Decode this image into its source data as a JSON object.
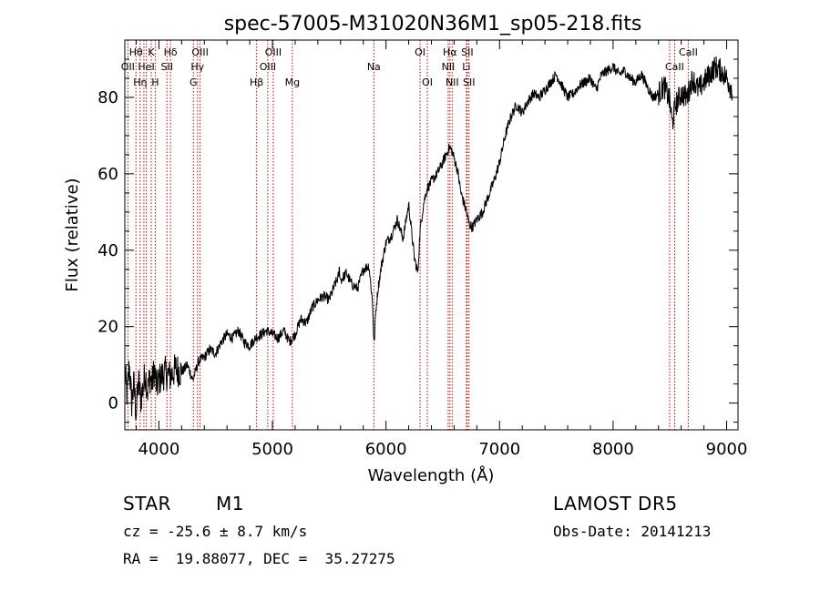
{
  "chart_data": {
    "type": "line",
    "title": "spec-57005-M31020N36M1_sp05-218.fits",
    "xlabel": "Wavelength (Å)",
    "ylabel": "Flux (relative)",
    "xlim": [
      3700,
      9100
    ],
    "ylim": [
      -7,
      95
    ],
    "xticks": [
      4000,
      5000,
      6000,
      7000,
      8000,
      9000
    ],
    "yticks": [
      0,
      20,
      40,
      60,
      80
    ],
    "grid": false,
    "legend": "none",
    "line_color": "#000000",
    "marker_color": "#cc0000",
    "series": [
      {
        "x": [
          3700,
          3720,
          3740,
          3760,
          3780,
          3800,
          3820,
          3840,
          3860,
          3880,
          3900,
          3920,
          3940,
          3960,
          3980,
          4000,
          4050,
          4100,
          4150,
          4200,
          4250,
          4300,
          4350,
          4400,
          4450,
          4500,
          4550,
          4600,
          4650,
          4700,
          4750,
          4800,
          4850,
          4900,
          4950,
          5000,
          5050,
          5100,
          5150,
          5200,
          5250,
          5300,
          5350,
          5400,
          5450,
          5500,
          5550,
          5580,
          5590,
          5600,
          5650,
          5700,
          5750,
          5800,
          5850,
          5880,
          5895,
          5910,
          5930,
          5960,
          6000,
          6050,
          6100,
          6150,
          6200,
          6250,
          6280,
          6300,
          6330,
          6360,
          6400,
          6450,
          6500,
          6530,
          6560,
          6580,
          6600,
          6630,
          6660,
          6700,
          6730,
          6760,
          6800,
          6850,
          6900,
          6950,
          7000,
          7050,
          7100,
          7150,
          7200,
          7250,
          7300,
          7350,
          7400,
          7450,
          7500,
          7550,
          7600,
          7650,
          7700,
          7750,
          7800,
          7850,
          7900,
          7950,
          8000,
          8050,
          8100,
          8150,
          8200,
          8250,
          8300,
          8350,
          8400,
          8450,
          8500,
          8520,
          8550,
          8600,
          8650,
          8700,
          8750,
          8800,
          8850,
          8900,
          8950,
          9000,
          9050
        ],
        "values": [
          8,
          2,
          10,
          0,
          5,
          -3,
          6,
          1,
          4,
          8,
          3,
          7,
          5,
          9,
          4,
          6,
          8,
          7,
          9,
          8,
          10,
          6,
          11,
          12,
          14,
          13,
          16,
          18,
          17,
          19,
          16,
          15,
          17,
          18,
          19,
          18,
          17,
          19,
          16,
          18,
          22,
          21,
          25,
          27,
          28,
          27,
          31,
          33,
          35,
          32,
          34,
          31,
          30,
          35,
          36,
          27,
          15,
          24,
          30,
          36,
          42,
          44,
          48,
          43,
          52,
          38,
          34,
          45,
          52,
          56,
          58,
          60,
          63,
          65,
          67,
          66,
          64,
          61,
          55,
          51,
          47,
          46,
          48,
          50,
          54,
          58,
          63,
          70,
          75,
          78,
          76,
          79,
          81,
          80,
          82,
          84,
          86,
          83,
          80,
          81,
          83,
          84,
          85,
          82,
          86,
          87,
          88,
          86,
          87,
          85,
          84,
          86,
          83,
          80,
          81,
          83,
          79,
          73,
          78,
          81,
          80,
          85,
          82,
          84,
          86,
          88,
          87,
          85,
          82
        ]
      }
    ],
    "line_markers": [
      {
        "x": 3727,
        "label": "OII",
        "row": 2
      },
      {
        "x": 3798,
        "label": "Hθ",
        "row": 1
      },
      {
        "x": 3835,
        "label": "Hη",
        "row": 3
      },
      {
        "x": 3868,
        "label": "",
        "row": 0
      },
      {
        "x": 3889,
        "label": "HeI",
        "row": 2
      },
      {
        "x": 3933,
        "label": "K",
        "row": 1
      },
      {
        "x": 3968,
        "label": "H",
        "row": 3
      },
      {
        "x": 4071,
        "label": "SII",
        "row": 2
      },
      {
        "x": 4102,
        "label": "Hδ",
        "row": 1
      },
      {
        "x": 4304,
        "label": "G",
        "row": 3
      },
      {
        "x": 4340,
        "label": "Hγ",
        "row": 2
      },
      {
        "x": 4363,
        "label": "OIII",
        "row": 1
      },
      {
        "x": 4861,
        "label": "Hβ",
        "row": 3
      },
      {
        "x": 4959,
        "label": "OIII",
        "row": 2
      },
      {
        "x": 5007,
        "label": "OIII",
        "row": 1
      },
      {
        "x": 5175,
        "label": "Mg",
        "row": 3
      },
      {
        "x": 5893,
        "label": "Na",
        "row": 2
      },
      {
        "x": 6300,
        "label": "OI",
        "row": 1
      },
      {
        "x": 6364,
        "label": "OI",
        "row": 3
      },
      {
        "x": 6548,
        "label": "NII",
        "row": 2
      },
      {
        "x": 6563,
        "label": "Hα",
        "row": 1
      },
      {
        "x": 6583,
        "label": "NII",
        "row": 3
      },
      {
        "x": 6708,
        "label": "Li",
        "row": 2
      },
      {
        "x": 6716,
        "label": "SII",
        "row": 1
      },
      {
        "x": 6731,
        "label": "SII",
        "row": 3
      },
      {
        "x": 8498,
        "label": "",
        "row": 0
      },
      {
        "x": 8542,
        "label": "CaII",
        "row": 2
      },
      {
        "x": 8662,
        "label": "CaII",
        "row": 1
      }
    ]
  },
  "info": {
    "object_class": "STAR",
    "subclass": "M1",
    "survey": "LAMOST DR5",
    "cz": "cz = -25.6 ± 8.7 km/s",
    "obs_date": "Obs-Date: 20141213",
    "radec": "RA =  19.88077, DEC =  35.27275"
  }
}
